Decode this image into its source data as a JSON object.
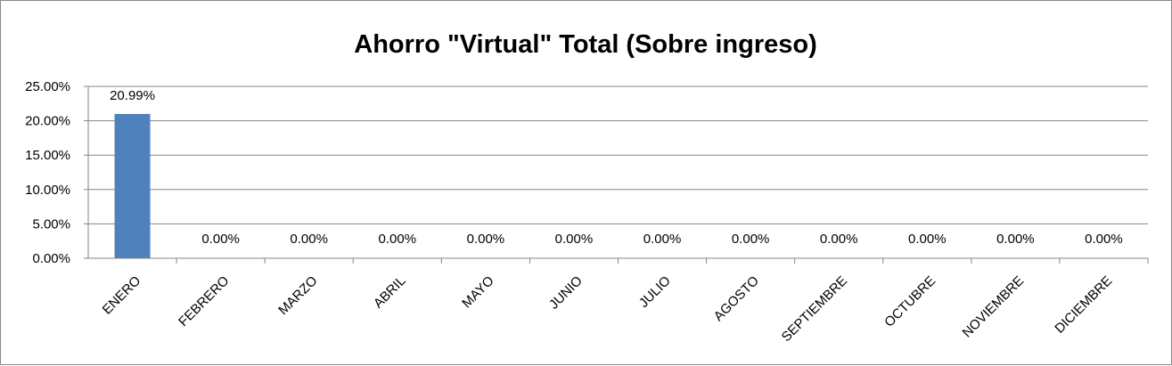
{
  "chart_data": {
    "type": "bar",
    "title": "Ahorro \"Virtual\" Total (Sobre ingreso)",
    "xlabel": "",
    "ylabel": "",
    "categories": [
      "ENERO",
      "FEBRERO",
      "MARZO",
      "ABRIL",
      "MAYO",
      "JUNIO",
      "JULIO",
      "AGOSTO",
      "SEPTIEMBRE",
      "OCTUBRE",
      "NOVIEMBRE",
      "DICIEMBRE"
    ],
    "values": [
      20.99,
      0,
      0,
      0,
      0,
      0,
      0,
      0,
      0,
      0,
      0,
      0
    ],
    "data_labels": [
      "20.99%",
      "0.00%",
      "0.00%",
      "0.00%",
      "0.00%",
      "0.00%",
      "0.00%",
      "0.00%",
      "0.00%",
      "0.00%",
      "0.00%",
      "0.00%"
    ],
    "ylim": [
      0,
      25
    ],
    "yticks": [
      0,
      5,
      10,
      15,
      20,
      25
    ],
    "ytick_labels": [
      "0.00%",
      "5.00%",
      "10.00%",
      "15.00%",
      "20.00%",
      "25.00%"
    ],
    "grid": true,
    "legend": "none",
    "bar_color": "#4F81BD",
    "grid_color": "#868686"
  }
}
